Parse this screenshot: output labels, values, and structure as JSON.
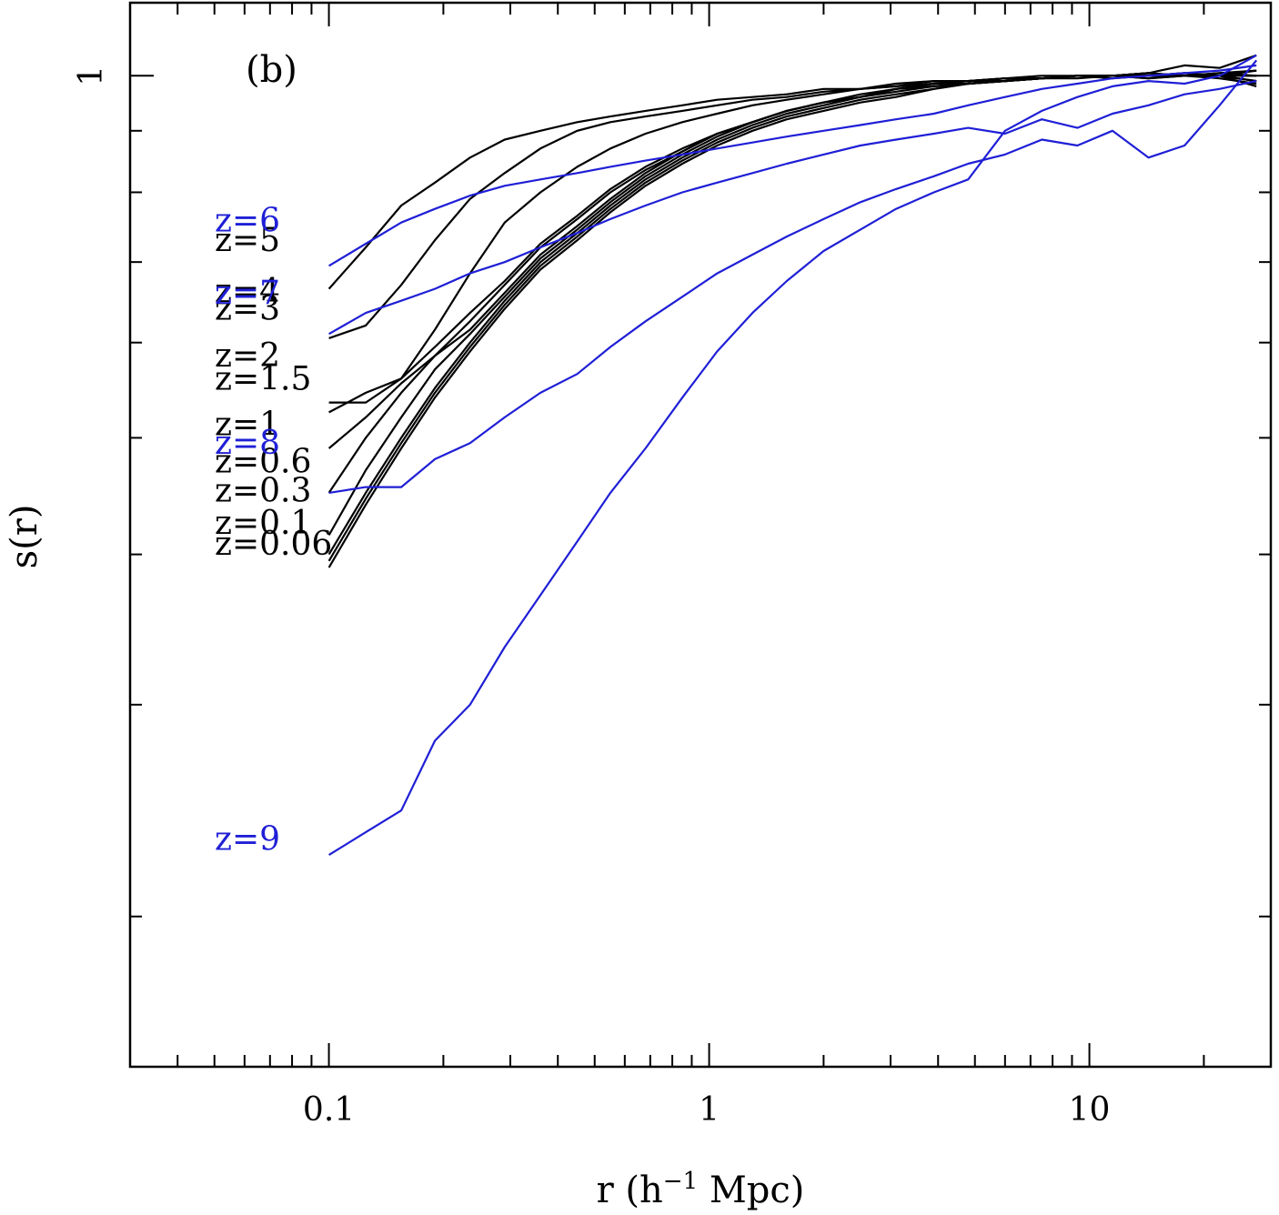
{
  "chart_data": {
    "type": "line",
    "panel_label": "(b)",
    "xlabel_main": "r (h",
    "xlabel_sup": "−1",
    "xlabel_tail": " Mpc)",
    "ylabel": "s(r)",
    "xscale": "log",
    "xlim": [
      0.03,
      30
    ],
    "ylim": [
      0.15,
      1.15
    ],
    "x_ticks": [
      {
        "value": 0.1,
        "label": "0.1"
      },
      {
        "value": 1,
        "label": "1"
      },
      {
        "value": 10,
        "label": "10"
      }
    ],
    "y_ticks": [
      {
        "value": 1,
        "label": "1"
      }
    ],
    "colors": {
      "black": "#000000",
      "blue": "#1f1fd6"
    },
    "x": [
      0.1,
      0.125,
      0.155,
      0.19,
      0.235,
      0.29,
      0.36,
      0.45,
      0.55,
      0.68,
      0.85,
      1.05,
      1.3,
      1.6,
      2.0,
      2.5,
      3.1,
      3.9,
      4.8,
      6.0,
      7.5,
      9.3,
      11.5,
      14.3,
      17.8,
      22,
      27.5
    ],
    "series": [
      {
        "name": "z=0.06",
        "label": "z=0.06",
        "color": "blue_black",
        "label_y": 0.408,
        "values": [
          0.39,
          0.44,
          0.49,
          0.54,
          0.59,
          0.64,
          0.69,
          0.73,
          0.77,
          0.81,
          0.845,
          0.875,
          0.9,
          0.92,
          0.935,
          0.95,
          0.96,
          0.975,
          0.985,
          0.99,
          0.995,
          1.0,
          1.0,
          1.0,
          1.005,
          1.0,
          0.98
        ]
      },
      {
        "name": "z=0.1",
        "label": "z=0.1",
        "color": "blue_black",
        "label_y": 0.425,
        "values": [
          0.395,
          0.445,
          0.495,
          0.545,
          0.595,
          0.645,
          0.695,
          0.735,
          0.775,
          0.815,
          0.85,
          0.88,
          0.905,
          0.925,
          0.94,
          0.955,
          0.965,
          0.975,
          0.985,
          0.99,
          0.995,
          0.995,
          1.0,
          1.0,
          1.0,
          1.005,
          1.01
        ]
      },
      {
        "name": "z=0.3",
        "label": "z=0.3",
        "color": "blue_black",
        "label_y": 0.452,
        "values": [
          0.4,
          0.45,
          0.5,
          0.55,
          0.6,
          0.65,
          0.7,
          0.74,
          0.78,
          0.82,
          0.855,
          0.885,
          0.91,
          0.93,
          0.945,
          0.96,
          0.97,
          0.98,
          0.985,
          0.99,
          0.995,
          1.0,
          1.0,
          1.0,
          1.0,
          1.0,
          1.0
        ]
      },
      {
        "name": "z=0.6",
        "label": "z=0.6",
        "color": "blue_black",
        "label_y": 0.478,
        "values": [
          0.415,
          0.47,
          0.52,
          0.57,
          0.61,
          0.655,
          0.705,
          0.745,
          0.785,
          0.825,
          0.86,
          0.89,
          0.915,
          0.935,
          0.95,
          0.96,
          0.975,
          0.98,
          0.985,
          0.99,
          0.995,
          1.0,
          1.0,
          0.995,
          1.0,
          1.005,
          1.0
        ]
      },
      {
        "name": "z=1",
        "label": "z=1",
        "color": "blue_black",
        "label_y": 0.513,
        "values": [
          0.45,
          0.5,
          0.545,
          0.585,
          0.615,
          0.66,
          0.71,
          0.75,
          0.79,
          0.83,
          0.865,
          0.895,
          0.915,
          0.935,
          0.95,
          0.965,
          0.975,
          0.985,
          0.985,
          0.99,
          0.995,
          1.0,
          1.0,
          1.005,
          1.0,
          1.0,
          0.99
        ]
      },
      {
        "name": "z=1.5",
        "label": "z=1.5",
        "color": "blue_black",
        "label_y": 0.56,
        "values": [
          0.49,
          0.52,
          0.555,
          0.585,
          0.625,
          0.67,
          0.72,
          0.76,
          0.8,
          0.835,
          0.865,
          0.895,
          0.915,
          0.935,
          0.95,
          0.96,
          0.975,
          0.985,
          0.99,
          0.99,
          0.995,
          1.0,
          0.995,
          1.0,
          1.005,
          1.0,
          1.0
        ]
      },
      {
        "name": "z=2",
        "label": "z=2",
        "color": "blue_black",
        "label_y": 0.585,
        "values": [
          0.525,
          0.545,
          0.56,
          0.595,
          0.635,
          0.675,
          0.725,
          0.765,
          0.805,
          0.84,
          0.87,
          0.895,
          0.915,
          0.935,
          0.95,
          0.96,
          0.975,
          0.985,
          0.99,
          0.995,
          0.995,
          1.0,
          1.0,
          0.995,
          1.0,
          1.0,
          0.99
        ]
      },
      {
        "name": "z=3",
        "label": "z=3",
        "color": "blue_black",
        "label_y": 0.64,
        "values": [
          0.535,
          0.535,
          0.56,
          0.615,
          0.685,
          0.755,
          0.8,
          0.84,
          0.87,
          0.895,
          0.915,
          0.93,
          0.945,
          0.955,
          0.965,
          0.975,
          0.98,
          0.985,
          0.99,
          0.995,
          0.995,
          1.0,
          1.0,
          1.005,
          1.0,
          0.995,
          0.985
        ]
      },
      {
        "name": "z=4",
        "label": "z=4",
        "color": "blue_black",
        "label_y": 0.662,
        "values": [
          0.605,
          0.62,
          0.67,
          0.73,
          0.79,
          0.83,
          0.87,
          0.9,
          0.915,
          0.925,
          0.935,
          0.945,
          0.955,
          0.96,
          0.97,
          0.975,
          0.98,
          0.99,
          0.99,
          0.995,
          0.995,
          1.0,
          1.0,
          1.005,
          1.0,
          1.0,
          1.01
        ]
      },
      {
        "name": "z=5",
        "label": "z=5",
        "color": "blue_black",
        "label_y": 0.73,
        "values": [
          0.665,
          0.72,
          0.78,
          0.815,
          0.855,
          0.885,
          0.9,
          0.915,
          0.925,
          0.935,
          0.945,
          0.955,
          0.96,
          0.965,
          0.975,
          0.975,
          0.985,
          0.99,
          0.99,
          0.995,
          1.0,
          1.0,
          1.0,
          1.005,
          1.02,
          1.015,
          1.04
        ]
      },
      {
        "name": "z=6",
        "label": "z=6",
        "color": "blue_blue",
        "label_y": 0.758,
        "values": [
          0.695,
          0.725,
          0.755,
          0.775,
          0.795,
          0.81,
          0.82,
          0.83,
          0.84,
          0.85,
          0.86,
          0.87,
          0.88,
          0.89,
          0.9,
          0.91,
          0.92,
          0.93,
          0.945,
          0.96,
          0.975,
          0.985,
          0.995,
          1.0,
          1.005,
          1.01,
          1.02
        ]
      },
      {
        "name": "z=7",
        "label": "z=7",
        "color": "blue_blue",
        "label_y": 0.66,
        "values": [
          0.61,
          0.635,
          0.65,
          0.665,
          0.685,
          0.7,
          0.72,
          0.74,
          0.76,
          0.78,
          0.8,
          0.815,
          0.83,
          0.845,
          0.86,
          0.875,
          0.885,
          0.895,
          0.905,
          0.895,
          0.92,
          0.905,
          0.93,
          0.945,
          0.965,
          0.975,
          0.99
        ]
      },
      {
        "name": "z=8",
        "label": "z=8",
        "color": "blue_blue",
        "label_y": 0.495,
        "values": [
          0.45,
          0.455,
          0.455,
          0.48,
          0.495,
          0.52,
          0.545,
          0.565,
          0.595,
          0.625,
          0.655,
          0.685,
          0.71,
          0.735,
          0.76,
          0.785,
          0.805,
          0.825,
          0.845,
          0.86,
          0.885,
          0.875,
          0.9,
          0.855,
          0.875,
          0.945,
          1.03
        ]
      },
      {
        "name": "z=9",
        "label": "z=9",
        "color": "blue_blue",
        "label_y": 0.232,
        "values": [
          0.225,
          0.235,
          0.245,
          0.28,
          0.3,
          0.335,
          0.37,
          0.41,
          0.45,
          0.49,
          0.54,
          0.59,
          0.635,
          0.675,
          0.715,
          0.745,
          0.775,
          0.8,
          0.82,
          0.9,
          0.935,
          0.96,
          0.98,
          0.99,
          0.985,
          1.0,
          1.04
        ]
      }
    ]
  }
}
